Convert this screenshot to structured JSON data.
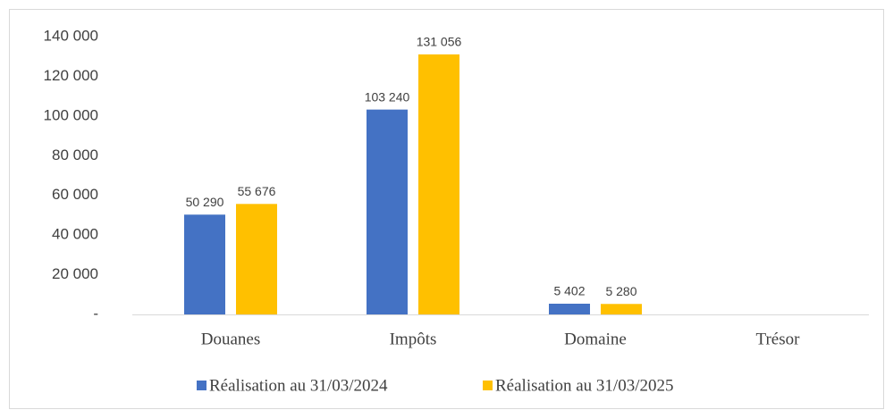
{
  "chart_data": {
    "type": "bar",
    "categories": [
      "Douanes",
      "Impôts",
      "Domaine",
      "Trésor"
    ],
    "series": [
      {
        "name": "Réalisation au 31/03/2024",
        "color": "#4472c4",
        "values": [
          50290,
          103240,
          5402,
          null
        ],
        "value_labels": [
          "50 290",
          "103 240",
          "5 402",
          null
        ]
      },
      {
        "name": "Réalisation au 31/03/2025",
        "color": "#ffc000",
        "values": [
          55676,
          131056,
          5280,
          null
        ],
        "value_labels": [
          "55 676",
          "131 056",
          "5 280",
          null
        ]
      }
    ],
    "ylim": [
      0,
      140000
    ],
    "yticks": [
      {
        "value": 0,
        "label": "-"
      },
      {
        "value": 20000,
        "label": "20 000"
      },
      {
        "value": 40000,
        "label": "40 000"
      },
      {
        "value": 60000,
        "label": "60 000"
      },
      {
        "value": 80000,
        "label": "80 000"
      },
      {
        "value": 100000,
        "label": "100 000"
      },
      {
        "value": 120000,
        "label": "120 000"
      },
      {
        "value": 140000,
        "label": "140 000"
      }
    ],
    "grid": false,
    "legend": "bottom"
  }
}
